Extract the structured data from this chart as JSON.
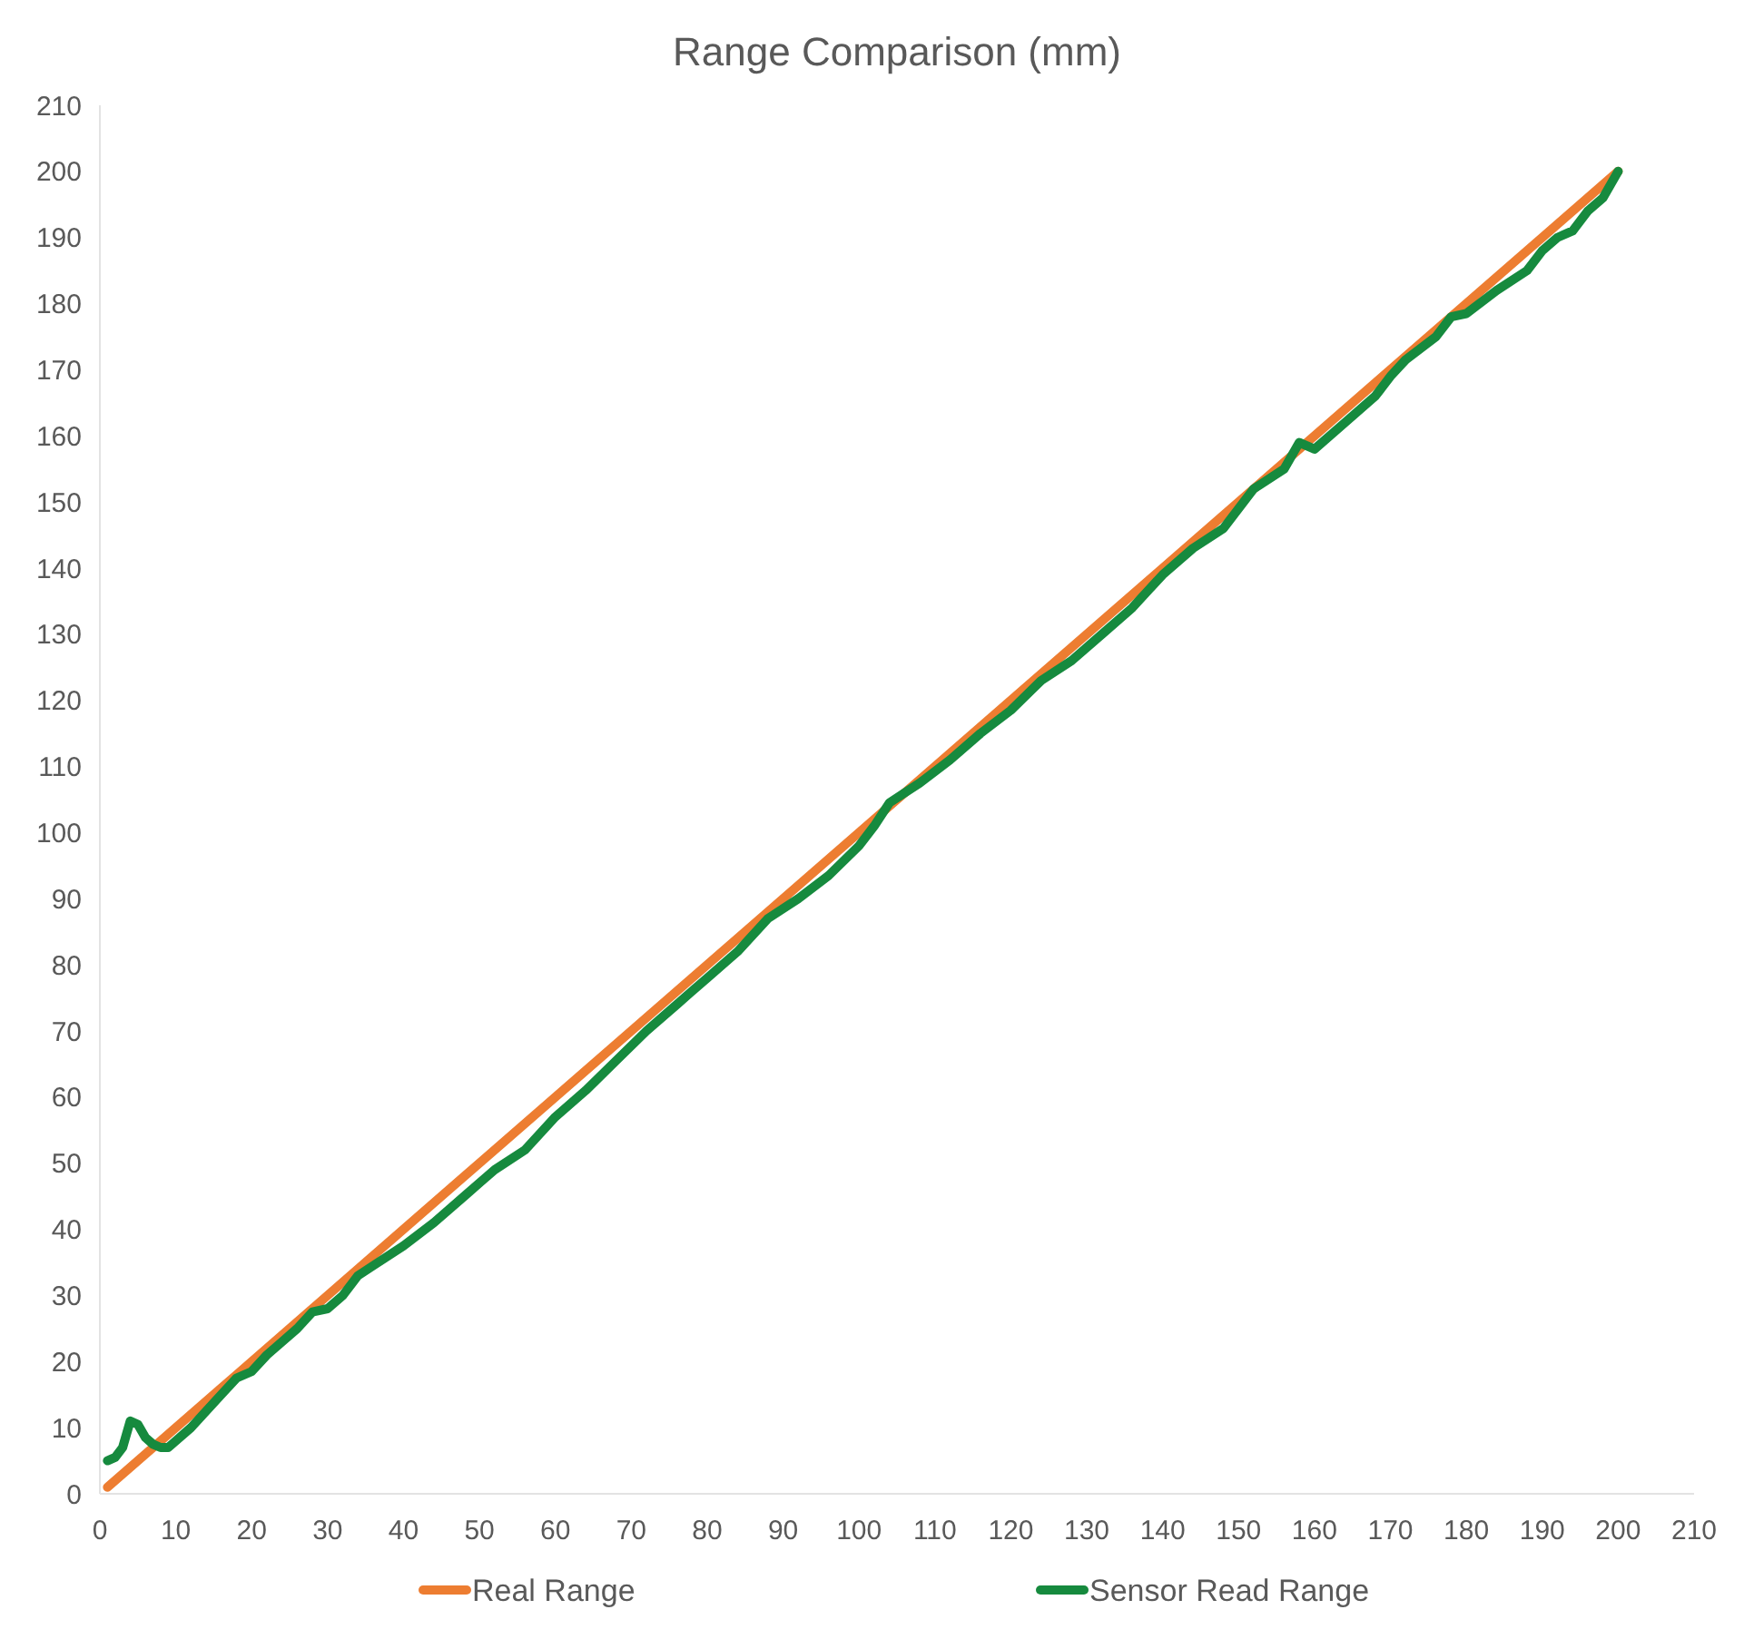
{
  "chart_data": {
    "type": "line",
    "title": "Range Comparison (mm)",
    "xlim": [
      0,
      210
    ],
    "xticks": [
      0,
      10,
      20,
      30,
      40,
      50,
      60,
      70,
      80,
      90,
      100,
      110,
      120,
      130,
      140,
      150,
      160,
      170,
      180,
      190,
      200,
      210
    ],
    "ylim": [
      0,
      210
    ],
    "yticks": [
      0,
      10,
      20,
      30,
      40,
      50,
      60,
      70,
      80,
      90,
      100,
      110,
      120,
      130,
      140,
      150,
      160,
      170,
      180,
      190,
      200,
      210
    ],
    "grid": false,
    "legend": "bottom",
    "marker": "none",
    "line_style": "solid",
    "series": [
      {
        "name": "Real Range",
        "color": "#ed7d31",
        "x": [
          1,
          200
        ],
        "values": [
          1,
          200
        ]
      },
      {
        "name": "Sensor Read Range",
        "color": "#168a3e",
        "x": [
          1,
          2,
          3,
          4,
          5,
          6,
          7,
          8,
          9,
          10,
          12,
          14,
          16,
          18,
          20,
          22,
          24,
          26,
          28,
          30,
          32,
          34,
          36,
          40,
          44,
          48,
          50,
          52,
          56,
          60,
          64,
          68,
          72,
          76,
          80,
          84,
          88,
          92,
          96,
          100,
          102,
          104,
          108,
          112,
          116,
          120,
          124,
          128,
          132,
          136,
          140,
          144,
          148,
          152,
          156,
          158,
          160,
          164,
          168,
          170,
          172,
          176,
          178,
          180,
          184,
          188,
          190,
          192,
          194,
          196,
          198,
          200
        ],
        "values": [
          5,
          5.5,
          7,
          11,
          10.5,
          8.5,
          7.5,
          7,
          7,
          8,
          10,
          12.5,
          15,
          17.5,
          18.5,
          21,
          23,
          25,
          27.5,
          28,
          30,
          33,
          34.5,
          37.5,
          41,
          45,
          47,
          49,
          52,
          57,
          61,
          65.5,
          70,
          74,
          78,
          82,
          87,
          90,
          93.5,
          98,
          101,
          104.5,
          107.5,
          111,
          115,
          118.5,
          123,
          126,
          130,
          134,
          139,
          143,
          146,
          152,
          155,
          159,
          158,
          162,
          166,
          169,
          171.5,
          175,
          178,
          178.5,
          182,
          185,
          188,
          190,
          191,
          194,
          196,
          200
        ]
      }
    ]
  }
}
